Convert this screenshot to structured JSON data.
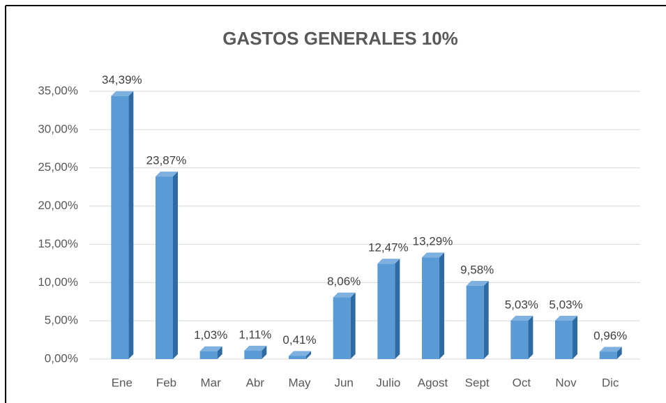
{
  "chart_data": {
    "type": "bar",
    "title": "GASTOS GENERALES 10%",
    "categories": [
      "Ene",
      "Feb",
      "Mar",
      "Abr",
      "May",
      "Jun",
      "Julio",
      "Agost",
      "Sept",
      "Oct",
      "Nov",
      "Dic"
    ],
    "values": [
      34.39,
      23.87,
      1.03,
      1.11,
      0.41,
      8.06,
      12.47,
      13.29,
      9.58,
      5.03,
      5.03,
      0.96
    ],
    "value_labels": [
      "34,39%",
      "23,87%",
      "1,03%",
      "1,11%",
      "0,41%",
      "8,06%",
      "12,47%",
      "13,29%",
      "9,58%",
      "5,03%",
      "5,03%",
      "0,96%"
    ],
    "color": "#5b9bd5",
    "ylim": [
      0,
      35
    ],
    "yticks": [
      {
        "value": 0,
        "label": "0,00%"
      },
      {
        "value": 5,
        "label": "5,00%"
      },
      {
        "value": 10,
        "label": "10,00%"
      },
      {
        "value": 15,
        "label": "15,00%"
      },
      {
        "value": 20,
        "label": "20,00%"
      },
      {
        "value": 25,
        "label": "25,00%"
      },
      {
        "value": 30,
        "label": "30,00%"
      },
      {
        "value": 35,
        "label": "35,00%"
      }
    ],
    "grid": true
  }
}
